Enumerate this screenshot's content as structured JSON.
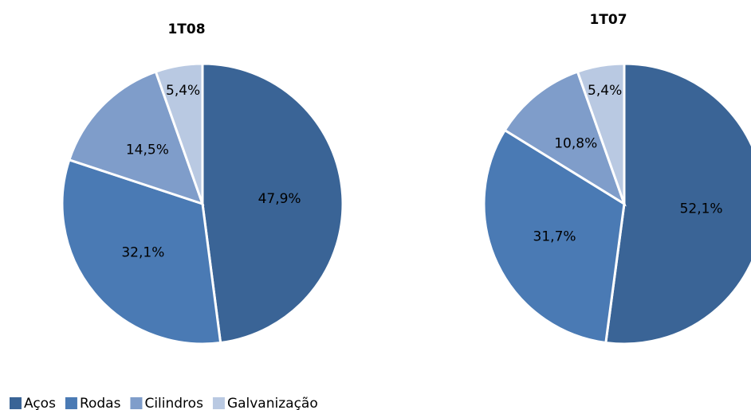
{
  "chart_data": [
    {
      "type": "pie",
      "title": "1T08",
      "categories": [
        "Aços",
        "Rodas",
        "Cilindros",
        "Galvanização"
      ],
      "values": [
        47.9,
        32.1,
        14.5,
        5.4
      ],
      "value_labels": [
        "47,9%",
        "32,1%",
        "14,5%",
        "5,4%"
      ],
      "colors": [
        "#3a6496",
        "#4a7ab4",
        "#7f9dca",
        "#b9c9e2"
      ]
    },
    {
      "type": "pie",
      "title": "1T07",
      "categories": [
        "Aços",
        "Rodas",
        "Cilindros",
        "Galvanização"
      ],
      "values": [
        52.1,
        31.7,
        10.8,
        5.4
      ],
      "value_labels": [
        "52,1%",
        "31,7%",
        "10,8%",
        "5,4%"
      ],
      "colors": [
        "#3a6496",
        "#4a7ab4",
        "#7f9dca",
        "#b9c9e2"
      ]
    }
  ]
}
